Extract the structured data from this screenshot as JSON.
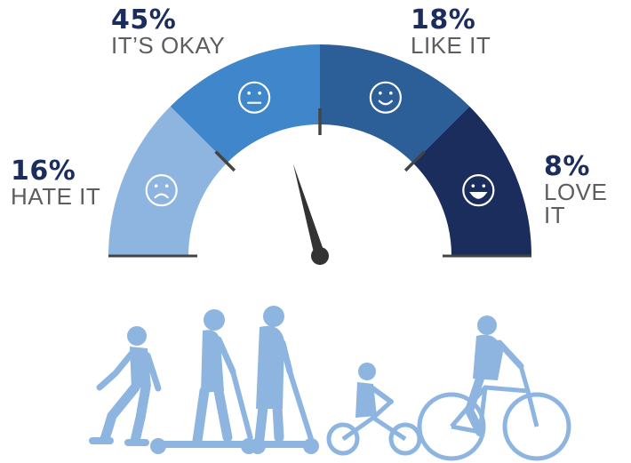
{
  "chart_data": {
    "type": "gauge",
    "segments": [
      {
        "label": "HATE IT",
        "pct_text": "16%",
        "value": 16,
        "color": "#8db5e0",
        "face": "sad-face-icon"
      },
      {
        "label": "IT’S OKAY",
        "pct_text": "45%",
        "value": 45,
        "color": "#3f86cb",
        "face": "neutral-face-icon"
      },
      {
        "label": "LIKE IT",
        "pct_text": "18%",
        "value": 18,
        "color": "#2c5f97",
        "face": "smile-face-icon"
      },
      {
        "label": "LOVE IT",
        "pct_text": "8%",
        "value": 8,
        "color": "#1b2d5c",
        "face": "grin-face-icon"
      }
    ],
    "needle_fraction": 0.41
  },
  "colors": {
    "text_dark": "#1b2d5c",
    "text_gray": "#5d5d60",
    "divider": "#444444",
    "needle": "#333333",
    "silhouettes": "#8db5e0"
  },
  "illustration": {
    "icon": "riders-silhouettes-icon"
  }
}
